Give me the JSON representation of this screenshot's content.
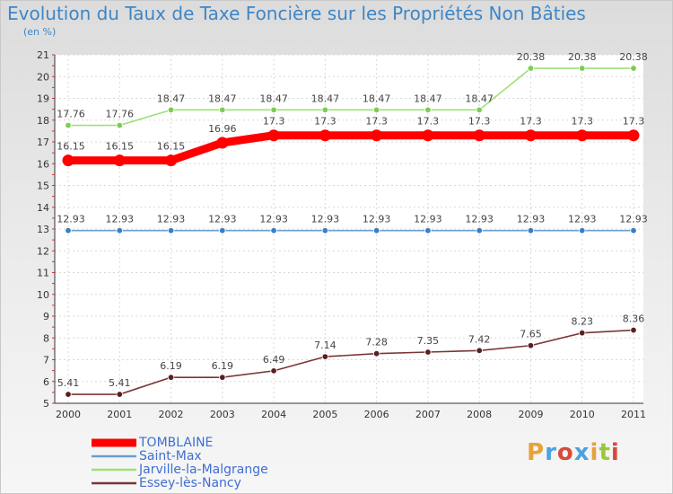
{
  "title": "Evolution du Taux de Taxe Foncière sur les Propriétés Non Bâties",
  "unit_label": "(en %)",
  "logo": "Proxiti",
  "chart_data": {
    "type": "line",
    "title": "Evolution du Taux de Taxe Foncière sur les Propriétés Non Bâties",
    "xlabel": "",
    "ylabel": "(en %)",
    "x": [
      "2000",
      "2001",
      "2002",
      "2003",
      "2004",
      "2005",
      "2006",
      "2007",
      "2008",
      "2009",
      "2010",
      "2011"
    ],
    "ylim": [
      5,
      21
    ],
    "yticks": [
      5,
      6,
      7,
      8,
      9,
      10,
      11,
      12,
      13,
      14,
      15,
      16,
      17,
      18,
      19,
      20,
      21
    ],
    "grid": true,
    "legend_position": "bottom-left",
    "series": [
      {
        "name": "TOMBLAINE",
        "color": "#ff0000",
        "dot_color": "#ff0000",
        "values": [
          16.15,
          16.15,
          16.15,
          16.96,
          17.3,
          17.3,
          17.3,
          17.3,
          17.3,
          17.3,
          17.3,
          17.3
        ],
        "labels": [
          "16.15",
          "16.15",
          "16.15",
          "16.96",
          "17.3",
          "17.3",
          "17.3",
          "17.3",
          "17.3",
          "17.3",
          "17.3",
          "17.3"
        ]
      },
      {
        "name": "Saint-Max",
        "color": "#6a9fd0",
        "dot_color": "#3a7fc2",
        "values": [
          12.93,
          12.93,
          12.93,
          12.93,
          12.93,
          12.93,
          12.93,
          12.93,
          12.93,
          12.93,
          12.93,
          12.93
        ],
        "labels": [
          "12.93",
          "12.93",
          "12.93",
          "12.93",
          "12.93",
          "12.93",
          "12.93",
          "12.93",
          "12.93",
          "12.93",
          "12.93",
          "12.93"
        ]
      },
      {
        "name": "Jarville-la-Malgrange",
        "color": "#9ee07a",
        "dot_color": "#7ccd52",
        "values": [
          17.76,
          17.76,
          18.47,
          18.47,
          18.47,
          18.47,
          18.47,
          18.47,
          18.47,
          20.38,
          20.38,
          20.38
        ],
        "labels": [
          "17.76",
          "17.76",
          "18.47",
          "18.47",
          "18.47",
          "18.47",
          "18.47",
          "18.47",
          "18.47",
          "20.38",
          "20.38",
          "20.38"
        ]
      },
      {
        "name": "Essey-lès-Nancy",
        "color": "#7a3535",
        "dot_color": "#5a1f1f",
        "values": [
          5.41,
          5.41,
          6.19,
          6.19,
          6.49,
          7.14,
          7.28,
          7.35,
          7.42,
          7.65,
          8.23,
          8.36
        ],
        "labels": [
          "5.41",
          "5.41",
          "6.19",
          "6.19",
          "6.49",
          "7.14",
          "7.28",
          "7.35",
          "7.42",
          "7.65",
          "8.23",
          "8.36"
        ]
      }
    ]
  }
}
